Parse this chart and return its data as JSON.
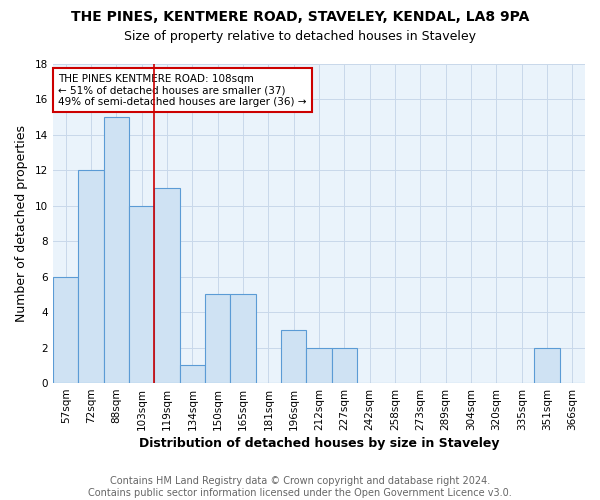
{
  "title": "THE PINES, KENTMERE ROAD, STAVELEY, KENDAL, LA8 9PA",
  "subtitle": "Size of property relative to detached houses in Staveley",
  "xlabel": "Distribution of detached houses by size in Staveley",
  "ylabel": "Number of detached properties",
  "categories": [
    "57sqm",
    "72sqm",
    "88sqm",
    "103sqm",
    "119sqm",
    "134sqm",
    "150sqm",
    "165sqm",
    "181sqm",
    "196sqm",
    "212sqm",
    "227sqm",
    "242sqm",
    "258sqm",
    "273sqm",
    "289sqm",
    "304sqm",
    "320sqm",
    "335sqm",
    "351sqm",
    "366sqm"
  ],
  "values": [
    6,
    12,
    15,
    10,
    11,
    1,
    5,
    5,
    0,
    3,
    2,
    2,
    0,
    0,
    0,
    0,
    0,
    0,
    0,
    2,
    0
  ],
  "bar_color": "#cfe2f3",
  "bar_edge_color": "#5b9bd5",
  "red_line_x": 3,
  "annotation_line1": "THE PINES KENTMERE ROAD: 108sqm",
  "annotation_line2": "← 51% of detached houses are smaller (37)",
  "annotation_line3": "49% of semi-detached houses are larger (36) →",
  "annotation_box_color": "#ffffff",
  "annotation_box_edge_color": "#cc0000",
  "ylim": [
    0,
    18
  ],
  "yticks": [
    0,
    2,
    4,
    6,
    8,
    10,
    12,
    14,
    16,
    18
  ],
  "footer_line1": "Contains HM Land Registry data © Crown copyright and database right 2024.",
  "footer_line2": "Contains public sector information licensed under the Open Government Licence v3.0.",
  "fig_background_color": "#ffffff",
  "plot_background_color": "#eaf3fb",
  "grid_color": "#c8d8ea",
  "title_fontsize": 10,
  "subtitle_fontsize": 9,
  "axis_label_fontsize": 9,
  "tick_fontsize": 7.5,
  "annotation_fontsize": 7.5,
  "footer_fontsize": 7
}
